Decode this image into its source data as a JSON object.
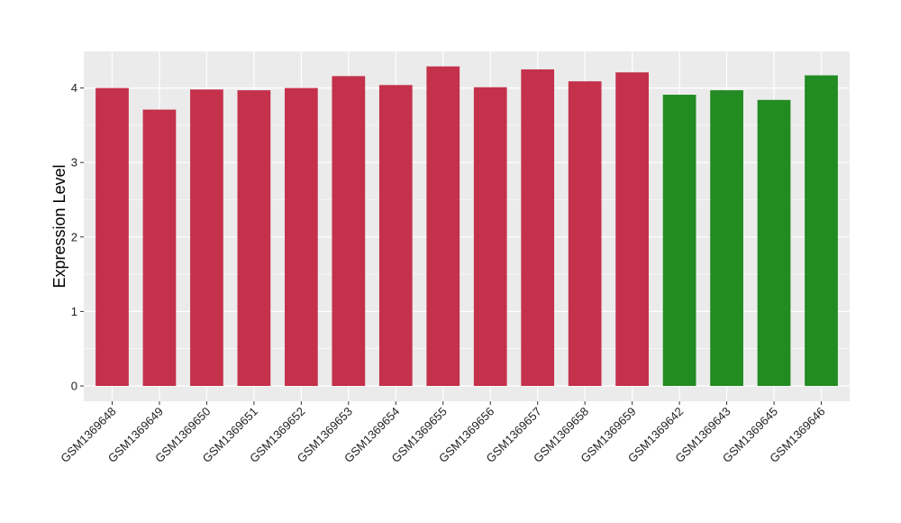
{
  "chart_data": {
    "type": "bar",
    "ylabel": "Expression Level",
    "xlabel": "",
    "categories": [
      "GSM1369648",
      "GSM1369649",
      "GSM1369650",
      "GSM1369651",
      "GSM1369652",
      "GSM1369653",
      "GSM1369654",
      "GSM1369655",
      "GSM1369656",
      "GSM1369657",
      "GSM1369658",
      "GSM1369659",
      "GSM1369642",
      "GSM1369643",
      "GSM1369645",
      "GSM1369646"
    ],
    "values": [
      4.0,
      3.71,
      3.98,
      3.97,
      4.0,
      4.16,
      4.04,
      4.29,
      4.01,
      4.25,
      4.09,
      4.21,
      3.91,
      3.97,
      3.84,
      4.17
    ],
    "bar_colors": [
      "#C4314B",
      "#C4314B",
      "#C4314B",
      "#C4314B",
      "#C4314B",
      "#C4314B",
      "#C4314B",
      "#C4314B",
      "#C4314B",
      "#C4314B",
      "#C4314B",
      "#C4314B",
      "#228B22",
      "#228B22",
      "#228B22",
      "#228B22"
    ],
    "yticks": [
      "0",
      "1",
      "2",
      "3",
      "4"
    ],
    "ylim": [
      -0.2,
      4.5
    ],
    "grid": true,
    "panel_background": "#EBEBEB",
    "gridline_color": "#FFFFFF"
  }
}
